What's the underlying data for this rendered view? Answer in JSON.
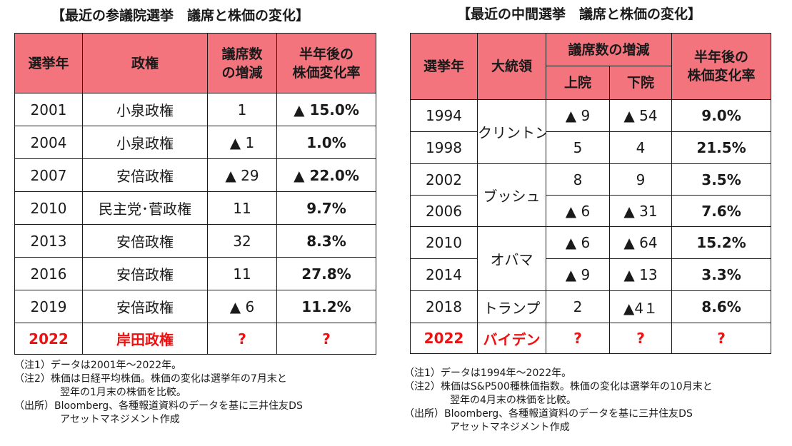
{
  "left": {
    "title": "【最近の参議院選挙　議席と株価の変化】",
    "headers": {
      "year": "選挙年",
      "regime": "政権",
      "seats_1": "議席数",
      "seats_2": "の増減",
      "pct_1": "半年後の",
      "pct_2": "株価変化率"
    },
    "rows": [
      {
        "year": "2001",
        "regime": "小泉政権",
        "seats": "1",
        "pct": "▲ 15.0%"
      },
      {
        "year": "2004",
        "regime": "小泉政権",
        "seats": "▲ 1",
        "pct": "1.0%"
      },
      {
        "year": "2007",
        "regime": "安倍政権",
        "seats": "▲ 29",
        "pct": "▲ 22.0%"
      },
      {
        "year": "2010",
        "regime": "民主党･菅政権",
        "seats": "11",
        "pct": "9.7%"
      },
      {
        "year": "2013",
        "regime": "安倍政権",
        "seats": "32",
        "pct": "8.3%"
      },
      {
        "year": "2016",
        "regime": "安倍政権",
        "seats": "11",
        "pct": "27.8%"
      },
      {
        "year": "2019",
        "regime": "安倍政権",
        "seats": "▲ 6",
        "pct": "11.2%"
      }
    ],
    "highlight": {
      "year": "2022",
      "regime": "岸田政権",
      "seats": "?",
      "pct": "?"
    },
    "notes": {
      "n1": "（注1）データは2001年～2022年。",
      "n2a": "（注2）株価は日経平均株価。株価の変化は選挙年の7月末と",
      "n2b": "翌年の1月末の株価を比較。",
      "src_a": "（出所）Bloomberg、各種報道資料のデータを基に三井住友DS",
      "src_b": "アセットマネジメント作成"
    }
  },
  "right": {
    "title": "【最近の中間選挙　議席と株価の変化】",
    "headers": {
      "year": "選挙年",
      "president": "大統領",
      "seats": "議席数の増減",
      "senate": "上院",
      "house": "下院",
      "pct_1": "半年後の",
      "pct_2": "株価変化率"
    },
    "presidents": {
      "clinton": "クリントン",
      "bush": "ブッシュ",
      "obama": "オバマ",
      "trump": "トランプ"
    },
    "rows": [
      {
        "year": "1994",
        "senate": "▲ 9",
        "house": "▲ 54",
        "pct": "9.0%"
      },
      {
        "year": "1998",
        "senate": "5",
        "house": "4",
        "pct": "21.5%"
      },
      {
        "year": "2002",
        "senate": "8",
        "house": "9",
        "pct": "3.5%"
      },
      {
        "year": "2006",
        "senate": "▲ 6",
        "house": "▲ 31",
        "pct": "7.6%"
      },
      {
        "year": "2010",
        "senate": "▲ 6",
        "house": "▲ 64",
        "pct": "15.2%"
      },
      {
        "year": "2014",
        "senate": "▲ 9",
        "house": "▲ 13",
        "pct": "3.3%"
      },
      {
        "year": "2018",
        "senate": "2",
        "house": "▲4１",
        "pct": "8.6%"
      }
    ],
    "highlight": {
      "year": "2022",
      "president": "バイデン",
      "senate": "?",
      "house": "?",
      "pct": "?"
    },
    "notes": {
      "n1": "（注1）データは1994年～2022年。",
      "n2a": "（注2）株価はS&P500種株価指数。株価の変化は選挙年の10月末と",
      "n2b": "翌年の4月末の株価を比較。",
      "src_a": "（出所）Bloomberg、各種報道資料のデータを基に三井住友DS",
      "src_b": "アセットマネジメント作成"
    }
  },
  "colors": {
    "header_bg": "#f4747e",
    "highlight_text": "#ee1111"
  }
}
